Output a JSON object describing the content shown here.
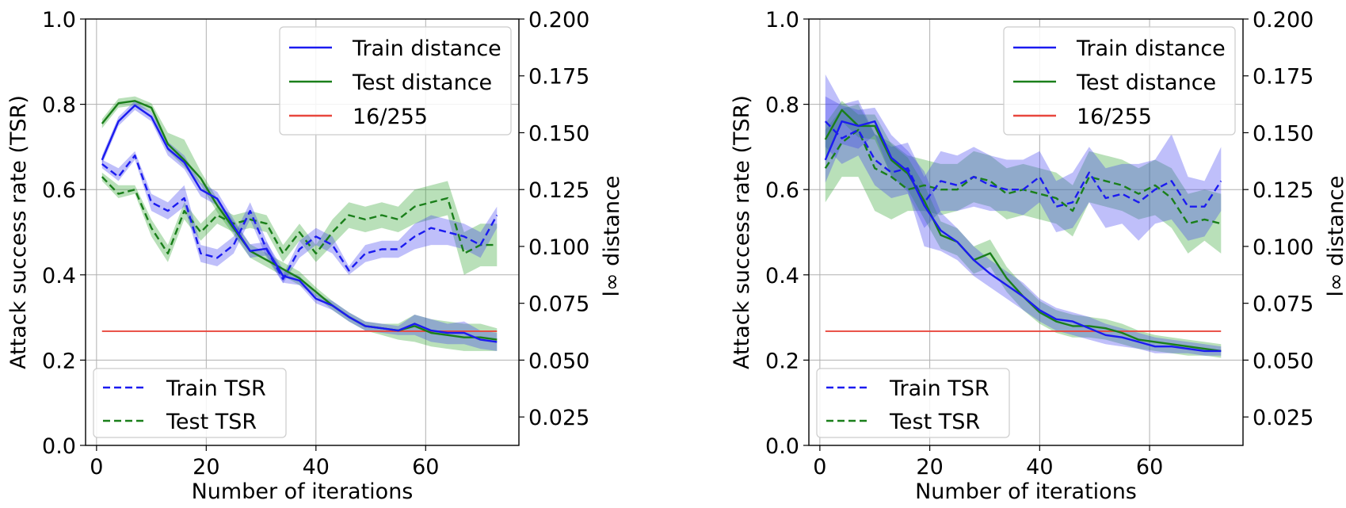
{
  "chart_data": [
    {
      "type": "line",
      "xlabel": "Number of iterations",
      "ylabel": "Attack success rate (TSR)",
      "y2label": "l∞ distance",
      "xlim": [
        -2,
        77
      ],
      "ylim": [
        0.0,
        1.0
      ],
      "y2lim": [
        0.0125,
        0.2
      ],
      "xticks": [
        0,
        20,
        40,
        60
      ],
      "yticks": [
        0.0,
        0.2,
        0.4,
        0.6,
        0.8,
        1.0
      ],
      "y2ticks": [
        0.025,
        0.05,
        0.075,
        0.1,
        0.125,
        0.15,
        0.175,
        0.2
      ],
      "grid": true,
      "legend_upper": {
        "placement": "top-right",
        "entries": [
          "Train distance",
          "Test distance",
          "16/255"
        ]
      },
      "legend_lower": {
        "placement": "bottom-left",
        "entries": [
          "Train TSR",
          "Test TSR"
        ]
      },
      "threshold": {
        "name": "16/255",
        "y2": 0.0627,
        "color": "#e8473d"
      },
      "series": [
        {
          "name": "Train distance",
          "axis": "right",
          "style": "solid",
          "color": "#1b1bf0",
          "x": [
            1,
            4,
            7,
            10,
            13,
            16,
            19,
            22,
            25,
            28,
            31,
            34,
            37,
            40,
            43,
            46,
            49,
            52,
            55,
            58,
            61,
            64,
            67,
            70,
            73
          ],
          "y": [
            0.138,
            0.155,
            0.162,
            0.157,
            0.143,
            0.137,
            0.125,
            0.121,
            0.109,
            0.098,
            0.099,
            0.087,
            0.085,
            0.077,
            0.074,
            0.069,
            0.065,
            0.064,
            0.063,
            0.066,
            0.063,
            0.062,
            0.062,
            0.059,
            0.058
          ],
          "lo": [
            0.136,
            0.153,
            0.16,
            0.155,
            0.14,
            0.134,
            0.122,
            0.118,
            0.106,
            0.095,
            0.096,
            0.084,
            0.083,
            0.075,
            0.072,
            0.067,
            0.063,
            0.062,
            0.061,
            0.061,
            0.058,
            0.057,
            0.057,
            0.055,
            0.054
          ],
          "hi": [
            0.14,
            0.157,
            0.164,
            0.159,
            0.146,
            0.14,
            0.128,
            0.124,
            0.112,
            0.101,
            0.102,
            0.09,
            0.087,
            0.079,
            0.076,
            0.071,
            0.067,
            0.066,
            0.065,
            0.07,
            0.068,
            0.066,
            0.067,
            0.063,
            0.062
          ]
        },
        {
          "name": "Test distance",
          "axis": "right",
          "style": "solid",
          "color": "#1a7f1a",
          "x": [
            1,
            4,
            7,
            10,
            13,
            16,
            19,
            22,
            25,
            28,
            31,
            34,
            37,
            40,
            43,
            46,
            49,
            52,
            55,
            58,
            61,
            64,
            67,
            70,
            73
          ],
          "y": [
            0.154,
            0.163,
            0.164,
            0.161,
            0.145,
            0.138,
            0.13,
            0.118,
            0.108,
            0.098,
            0.094,
            0.09,
            0.086,
            0.08,
            0.074,
            0.069,
            0.065,
            0.064,
            0.063,
            0.065,
            0.062,
            0.061,
            0.06,
            0.06,
            0.059
          ],
          "lo": [
            0.152,
            0.161,
            0.162,
            0.159,
            0.142,
            0.135,
            0.127,
            0.115,
            0.105,
            0.095,
            0.091,
            0.087,
            0.083,
            0.078,
            0.072,
            0.067,
            0.063,
            0.061,
            0.059,
            0.058,
            0.056,
            0.055,
            0.054,
            0.054,
            0.054
          ],
          "hi": [
            0.156,
            0.165,
            0.166,
            0.163,
            0.15,
            0.147,
            0.133,
            0.121,
            0.111,
            0.101,
            0.097,
            0.093,
            0.089,
            0.082,
            0.076,
            0.071,
            0.067,
            0.066,
            0.066,
            0.07,
            0.068,
            0.067,
            0.066,
            0.066,
            0.064
          ]
        },
        {
          "name": "Train TSR",
          "axis": "left",
          "style": "dashed",
          "color": "#1b1bf0",
          "x": [
            1,
            4,
            7,
            10,
            13,
            16,
            19,
            22,
            25,
            28,
            31,
            34,
            37,
            40,
            43,
            46,
            49,
            52,
            55,
            58,
            61,
            64,
            67,
            70,
            73
          ],
          "y": [
            0.66,
            0.63,
            0.68,
            0.57,
            0.55,
            0.58,
            0.45,
            0.44,
            0.47,
            0.55,
            0.46,
            0.39,
            0.46,
            0.49,
            0.47,
            0.41,
            0.45,
            0.46,
            0.46,
            0.49,
            0.51,
            0.5,
            0.49,
            0.47,
            0.54
          ],
          "lo": [
            0.65,
            0.62,
            0.67,
            0.55,
            0.53,
            0.56,
            0.43,
            0.42,
            0.45,
            0.53,
            0.44,
            0.38,
            0.44,
            0.47,
            0.45,
            0.4,
            0.43,
            0.44,
            0.44,
            0.46,
            0.47,
            0.47,
            0.46,
            0.44,
            0.51
          ],
          "hi": [
            0.67,
            0.65,
            0.69,
            0.59,
            0.57,
            0.61,
            0.47,
            0.46,
            0.49,
            0.57,
            0.48,
            0.4,
            0.48,
            0.51,
            0.49,
            0.42,
            0.47,
            0.48,
            0.48,
            0.52,
            0.54,
            0.53,
            0.52,
            0.5,
            0.56
          ]
        },
        {
          "name": "Test TSR",
          "axis": "left",
          "style": "dashed",
          "color": "#1a7f1a",
          "x": [
            1,
            4,
            7,
            10,
            13,
            16,
            19,
            22,
            25,
            28,
            31,
            34,
            37,
            40,
            43,
            46,
            49,
            52,
            55,
            58,
            61,
            64,
            67,
            70,
            73
          ],
          "y": [
            0.63,
            0.59,
            0.6,
            0.51,
            0.45,
            0.55,
            0.5,
            0.54,
            0.52,
            0.53,
            0.52,
            0.45,
            0.5,
            0.45,
            0.5,
            0.54,
            0.53,
            0.54,
            0.53,
            0.56,
            0.57,
            0.58,
            0.45,
            0.47,
            0.47
          ],
          "lo": [
            0.62,
            0.58,
            0.59,
            0.49,
            0.43,
            0.53,
            0.48,
            0.52,
            0.5,
            0.51,
            0.5,
            0.43,
            0.48,
            0.43,
            0.47,
            0.51,
            0.5,
            0.51,
            0.5,
            0.52,
            0.53,
            0.54,
            0.4,
            0.42,
            0.42
          ],
          "hi": [
            0.64,
            0.61,
            0.61,
            0.53,
            0.47,
            0.57,
            0.52,
            0.56,
            0.54,
            0.55,
            0.54,
            0.47,
            0.52,
            0.47,
            0.53,
            0.57,
            0.56,
            0.57,
            0.56,
            0.6,
            0.61,
            0.62,
            0.5,
            0.52,
            0.52
          ]
        }
      ]
    },
    {
      "type": "line",
      "xlabel": "Number of iterations",
      "ylabel": "Attack success rate (TSR)",
      "y2label": "l∞ distance",
      "xlim": [
        -2,
        77
      ],
      "ylim": [
        0.0,
        1.0
      ],
      "y2lim": [
        0.0125,
        0.2
      ],
      "xticks": [
        0,
        20,
        40,
        60
      ],
      "yticks": [
        0.0,
        0.2,
        0.4,
        0.6,
        0.8,
        1.0
      ],
      "y2ticks": [
        0.025,
        0.05,
        0.075,
        0.1,
        0.125,
        0.15,
        0.175,
        0.2
      ],
      "grid": true,
      "legend_upper": {
        "placement": "top-right",
        "entries": [
          "Train distance",
          "Test distance",
          "16/255"
        ]
      },
      "legend_lower": {
        "placement": "bottom-left",
        "entries": [
          "Train TSR",
          "Test TSR"
        ]
      },
      "threshold": {
        "name": "16/255",
        "y2": 0.0627,
        "color": "#e8473d"
      },
      "series": [
        {
          "name": "Train distance",
          "axis": "right",
          "style": "solid",
          "color": "#1b1bf0",
          "x": [
            1,
            4,
            7,
            10,
            13,
            16,
            19,
            22,
            25,
            28,
            31,
            34,
            37,
            40,
            43,
            46,
            49,
            52,
            55,
            58,
            61,
            64,
            67,
            70,
            73
          ],
          "y": [
            0.138,
            0.155,
            0.153,
            0.155,
            0.139,
            0.133,
            0.118,
            0.107,
            0.102,
            0.094,
            0.088,
            0.083,
            0.078,
            0.072,
            0.068,
            0.067,
            0.064,
            0.061,
            0.06,
            0.058,
            0.056,
            0.056,
            0.055,
            0.054,
            0.054
          ],
          "lo": [
            0.128,
            0.145,
            0.143,
            0.149,
            0.131,
            0.124,
            0.1,
            0.098,
            0.094,
            0.087,
            0.082,
            0.077,
            0.072,
            0.067,
            0.063,
            0.061,
            0.059,
            0.057,
            0.056,
            0.055,
            0.053,
            0.053,
            0.053,
            0.052,
            0.052
          ],
          "hi": [
            0.166,
            0.162,
            0.16,
            0.161,
            0.149,
            0.142,
            0.133,
            0.115,
            0.108,
            0.1,
            0.094,
            0.089,
            0.084,
            0.077,
            0.073,
            0.071,
            0.069,
            0.066,
            0.064,
            0.062,
            0.06,
            0.059,
            0.058,
            0.057,
            0.056
          ]
        },
        {
          "name": "Test distance",
          "axis": "right",
          "style": "solid",
          "color": "#1a7f1a",
          "x": [
            1,
            4,
            7,
            10,
            13,
            16,
            19,
            22,
            25,
            28,
            31,
            34,
            37,
            40,
            43,
            46,
            49,
            52,
            55,
            58,
            61,
            64,
            67,
            70,
            73
          ],
          "y": [
            0.147,
            0.16,
            0.153,
            0.153,
            0.138,
            0.132,
            0.12,
            0.105,
            0.102,
            0.094,
            0.097,
            0.086,
            0.078,
            0.071,
            0.067,
            0.065,
            0.065,
            0.064,
            0.062,
            0.059,
            0.058,
            0.057,
            0.056,
            0.055,
            0.054
          ],
          "lo": [
            0.139,
            0.155,
            0.148,
            0.147,
            0.131,
            0.125,
            0.112,
            0.099,
            0.096,
            0.088,
            0.091,
            0.08,
            0.072,
            0.066,
            0.062,
            0.06,
            0.06,
            0.059,
            0.057,
            0.055,
            0.054,
            0.053,
            0.052,
            0.052,
            0.051
          ],
          "hi": [
            0.154,
            0.164,
            0.158,
            0.158,
            0.145,
            0.139,
            0.127,
            0.111,
            0.108,
            0.1,
            0.103,
            0.091,
            0.083,
            0.076,
            0.072,
            0.07,
            0.069,
            0.068,
            0.066,
            0.063,
            0.061,
            0.06,
            0.059,
            0.058,
            0.057
          ]
        },
        {
          "name": "Train TSR",
          "axis": "left",
          "style": "dashed",
          "color": "#1b1bf0",
          "x": [
            1,
            4,
            7,
            10,
            13,
            16,
            19,
            22,
            25,
            28,
            31,
            34,
            37,
            40,
            43,
            46,
            49,
            52,
            55,
            58,
            61,
            64,
            67,
            70,
            73
          ],
          "y": [
            0.76,
            0.72,
            0.74,
            0.67,
            0.64,
            0.65,
            0.57,
            0.62,
            0.61,
            0.63,
            0.61,
            0.6,
            0.6,
            0.63,
            0.56,
            0.57,
            0.64,
            0.58,
            0.59,
            0.57,
            0.6,
            0.62,
            0.56,
            0.56,
            0.62
          ],
          "lo": [
            0.7,
            0.66,
            0.68,
            0.61,
            0.58,
            0.59,
            0.51,
            0.55,
            0.55,
            0.56,
            0.55,
            0.55,
            0.54,
            0.57,
            0.5,
            0.51,
            0.57,
            0.51,
            0.52,
            0.48,
            0.52,
            0.53,
            0.48,
            0.49,
            0.55
          ],
          "hi": [
            0.87,
            0.8,
            0.81,
            0.73,
            0.7,
            0.71,
            0.63,
            0.69,
            0.68,
            0.7,
            0.68,
            0.67,
            0.67,
            0.69,
            0.62,
            0.64,
            0.7,
            0.65,
            0.66,
            0.66,
            0.67,
            0.73,
            0.63,
            0.62,
            0.7
          ]
        },
        {
          "name": "Test TSR",
          "axis": "left",
          "style": "dashed",
          "color": "#1a7f1a",
          "x": [
            1,
            4,
            7,
            10,
            13,
            16,
            19,
            22,
            25,
            28,
            31,
            34,
            37,
            40,
            43,
            46,
            49,
            52,
            55,
            58,
            61,
            64,
            67,
            70,
            73
          ],
          "y": [
            0.65,
            0.71,
            0.74,
            0.65,
            0.63,
            0.6,
            0.61,
            0.6,
            0.6,
            0.63,
            0.62,
            0.59,
            0.6,
            0.59,
            0.58,
            0.55,
            0.63,
            0.62,
            0.61,
            0.59,
            0.61,
            0.58,
            0.52,
            0.53,
            0.52
          ],
          "lo": [
            0.57,
            0.63,
            0.63,
            0.55,
            0.53,
            0.55,
            0.55,
            0.54,
            0.55,
            0.57,
            0.56,
            0.53,
            0.54,
            0.53,
            0.52,
            0.49,
            0.57,
            0.56,
            0.55,
            0.53,
            0.54,
            0.51,
            0.45,
            0.48,
            0.45
          ],
          "hi": [
            0.74,
            0.79,
            0.8,
            0.73,
            0.71,
            0.68,
            0.67,
            0.66,
            0.66,
            0.69,
            0.68,
            0.65,
            0.66,
            0.65,
            0.64,
            0.61,
            0.69,
            0.68,
            0.67,
            0.65,
            0.67,
            0.65,
            0.59,
            0.6,
            0.59
          ]
        }
      ]
    }
  ]
}
